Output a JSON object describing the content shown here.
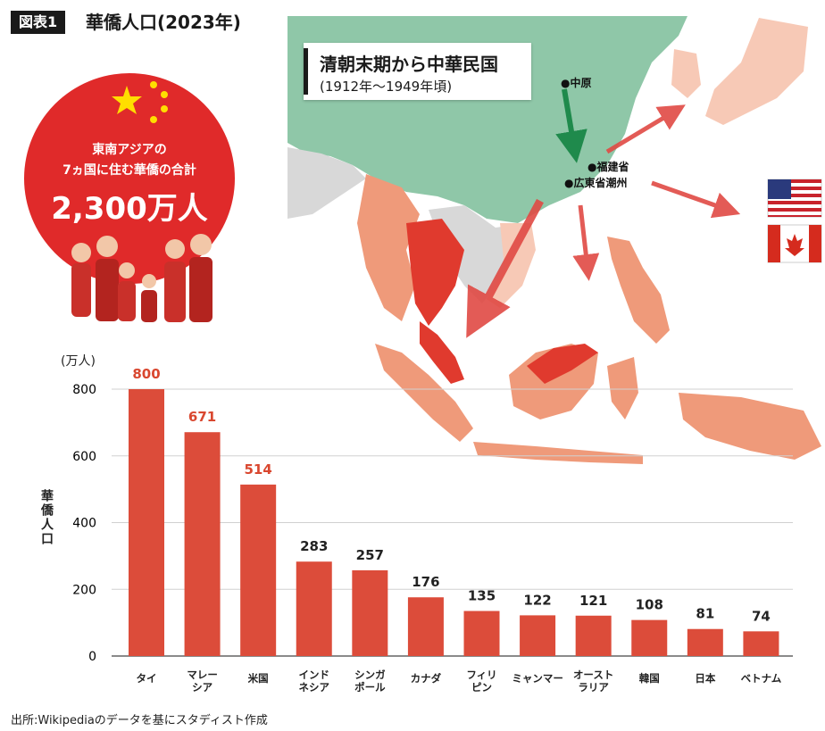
{
  "header": {
    "badge": "図表1",
    "title": "華僑人口(2023年)"
  },
  "map": {
    "box_title": "清朝末期から中華民国",
    "box_subtitle": "(1912年〜1949年頃)",
    "places": [
      "●中原",
      "●福建省",
      "●広東省潮州"
    ]
  },
  "circle": {
    "line1": "東南アジアの",
    "line2": "7ヵ国に住む華僑の合計",
    "total": "2,300万人"
  },
  "colors": {
    "bar": "#dc4c3a",
    "highlight_label": "#d9472f",
    "china_green": "#8fc7a8",
    "circle_red": "#e02a2a",
    "dark_country": "#e03a2e",
    "mid_country": "#ef9a7a",
    "light_country": "#f7c9b6",
    "grey_country": "#d8d8d8"
  },
  "chart_data": {
    "type": "bar",
    "categories": [
      [
        "タイ"
      ],
      [
        "マレー",
        "シア"
      ],
      [
        "米国"
      ],
      [
        "インド",
        "ネシア"
      ],
      [
        "シンガ",
        "ポール"
      ],
      [
        "カナダ"
      ],
      [
        "フィリ",
        "ピン"
      ],
      [
        "ミャンマー"
      ],
      [
        "オースト",
        "ラリア"
      ],
      [
        "韓国"
      ],
      [
        "日本"
      ],
      [
        "ベトナム"
      ]
    ],
    "values": [
      800,
      671,
      514,
      283,
      257,
      176,
      135,
      122,
      121,
      108,
      81,
      74
    ],
    "value_labels": [
      "800",
      "671",
      "514",
      "283",
      "257",
      "176",
      "135",
      "122",
      "121",
      "108",
      "81",
      "74"
    ],
    "highlighted": [
      0,
      1,
      2
    ],
    "ylabel": "華僑人口",
    "y_unit": "(万人)",
    "ylim": [
      0,
      800
    ],
    "yticks": [
      "0",
      "200",
      "400",
      "600",
      "800"
    ],
    "grid": true
  },
  "source": "出所:Wikipediaのデータを基にスタディスト作成"
}
